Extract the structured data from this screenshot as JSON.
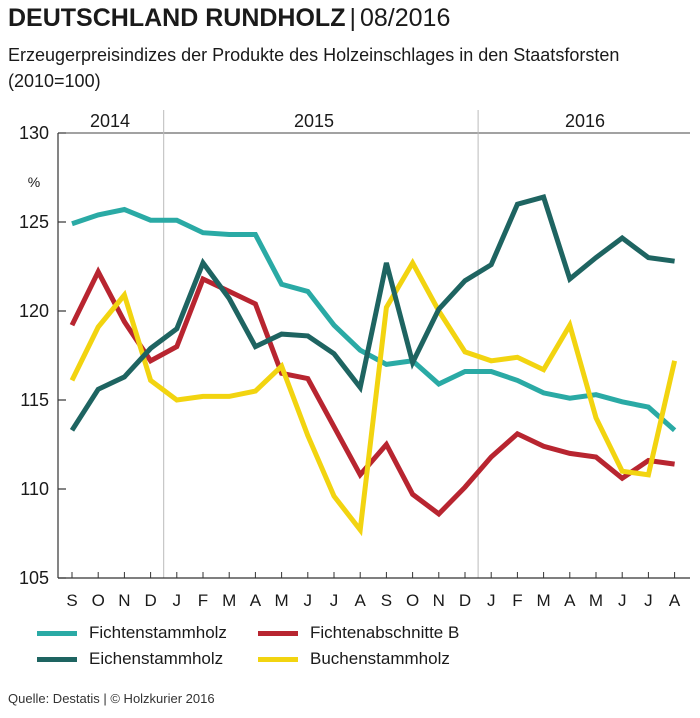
{
  "header": {
    "title": "DEUTSCHLAND RUNDHOLZ",
    "separator": "|",
    "date": "08/2016",
    "subtitle": "Erzeugerpreisindizes der Produkte des Holzeinschlages in den Staatsforsten (2010=100)"
  },
  "footer": {
    "source": "Quelle: Destatis | © Holzkurier 2016"
  },
  "chart_data": {
    "type": "line",
    "title": "DEUTSCHLAND RUNDHOLZ | 08/2016",
    "unit_label": "%",
    "year_labels": [
      "2014",
      "2015",
      "2016"
    ],
    "categories": [
      "S",
      "O",
      "N",
      "D",
      "J",
      "F",
      "M",
      "A",
      "M",
      "J",
      "J",
      "A",
      "S",
      "O",
      "N",
      "D",
      "J",
      "F",
      "M",
      "A",
      "M",
      "J",
      "J",
      "A"
    ],
    "ylim": [
      105,
      130
    ],
    "yticks": [
      105,
      110,
      115,
      120,
      125,
      130
    ],
    "grid": "vertical lines at year boundaries",
    "legend_position": "bottom",
    "series": [
      {
        "name": "Fichtenstammholz",
        "color": "#2aaaa5",
        "values": [
          124.9,
          125.4,
          125.7,
          125.1,
          125.1,
          124.4,
          124.3,
          124.3,
          121.5,
          121.1,
          119.2,
          117.8,
          117.0,
          117.2,
          115.9,
          116.6,
          116.6,
          116.1,
          115.4,
          115.1,
          115.3,
          114.9,
          114.6,
          113.3
        ]
      },
      {
        "name": "Fichtenabschnitte B",
        "color": "#b82530",
        "values": [
          119.2,
          122.2,
          119.4,
          117.2,
          118.0,
          121.8,
          121.1,
          120.4,
          116.5,
          116.2,
          113.5,
          110.8,
          112.5,
          109.7,
          108.6,
          110.1,
          111.8,
          113.1,
          112.4,
          112.0,
          111.8,
          110.6,
          111.6,
          111.4
        ]
      },
      {
        "name": "Eichenstammholz",
        "color": "#1e6461",
        "values": [
          113.3,
          115.6,
          116.3,
          117.9,
          119.0,
          122.7,
          120.7,
          118.0,
          118.7,
          118.6,
          117.6,
          115.7,
          122.7,
          117.1,
          120.1,
          121.7,
          122.6,
          126.0,
          126.4,
          121.8,
          123.0,
          124.1,
          123.0,
          122.8
        ]
      },
      {
        "name": "Buchenstammholz",
        "color": "#f2d410",
        "values": [
          116.1,
          119.1,
          120.9,
          116.1,
          115.0,
          115.2,
          115.2,
          115.5,
          116.9,
          113.0,
          109.6,
          107.7,
          120.2,
          122.7,
          120.0,
          117.7,
          117.2,
          117.4,
          116.7,
          119.2,
          114.0,
          111.0,
          110.8,
          117.2
        ]
      }
    ]
  }
}
